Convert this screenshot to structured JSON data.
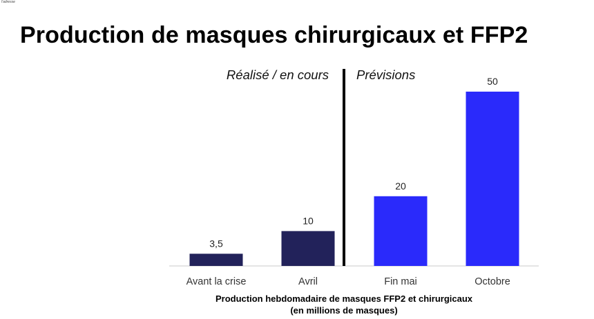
{
  "corner_text": "l'adresse",
  "title": "Production de masques chirurgicaux et FFP2",
  "chart_data": {
    "type": "bar",
    "categories": [
      "Avant la crise",
      "Avril",
      "Fin mai",
      "Octobre"
    ],
    "values": [
      3.5,
      10,
      20,
      50
    ],
    "value_labels": [
      "3,5",
      "10",
      "20",
      "50"
    ],
    "title": "Production de masques chirurgicaux et FFP2",
    "xlabel": "Production hebdomadaire de masques FFP2 et chirurgicaux (en millions de masques)",
    "ylabel": "",
    "ylim": [
      0,
      50
    ],
    "grid": false,
    "sections": [
      {
        "label": "Réalisé / en cours",
        "categories": [
          "Avant la crise",
          "Avril"
        ],
        "color": "#22225a"
      },
      {
        "label": "Prévisions",
        "categories": [
          "Fin mai",
          "Octobre"
        ],
        "color": "#2a2afb"
      }
    ],
    "colors": [
      "#22225a",
      "#22225a",
      "#2a2afb",
      "#2a2afb"
    ]
  },
  "footnote": {
    "line1": "Production hebdomadaire de masques FFP2 et chirurgicaux",
    "line2": "(en millions de masques)"
  }
}
